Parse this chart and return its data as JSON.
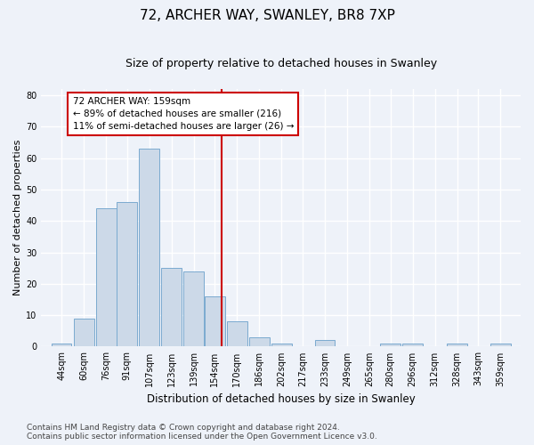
{
  "title": "72, ARCHER WAY, SWANLEY, BR8 7XP",
  "subtitle": "Size of property relative to detached houses in Swanley",
  "xlabel": "Distribution of detached houses by size in Swanley",
  "ylabel": "Number of detached properties",
  "bin_labels": [
    "44sqm",
    "60sqm",
    "76sqm",
    "91sqm",
    "107sqm",
    "123sqm",
    "139sqm",
    "154sqm",
    "170sqm",
    "186sqm",
    "202sqm",
    "217sqm",
    "233sqm",
    "249sqm",
    "265sqm",
    "280sqm",
    "296sqm",
    "312sqm",
    "328sqm",
    "343sqm",
    "359sqm"
  ],
  "bin_centers": [
    44,
    60,
    76,
    91,
    107,
    123,
    139,
    154,
    170,
    186,
    202,
    217,
    233,
    249,
    265,
    280,
    296,
    312,
    328,
    343,
    359
  ],
  "counts": [
    1,
    9,
    44,
    46,
    63,
    25,
    24,
    16,
    8,
    3,
    1,
    0,
    2,
    0,
    0,
    1,
    1,
    0,
    1,
    0,
    1
  ],
  "bar_color": "#ccd9e8",
  "bar_edge_color": "#7aaad0",
  "vline_x": 159,
  "vline_color": "#cc0000",
  "annotation_line1": "72 ARCHER WAY: 159sqm",
  "annotation_line2": "← 89% of detached houses are smaller (216)",
  "annotation_line3": "11% of semi-detached houses are larger (26) →",
  "annotation_box_color": "#ffffff",
  "annotation_box_edge_color": "#cc0000",
  "ylim": [
    0,
    82
  ],
  "yticks": [
    0,
    10,
    20,
    30,
    40,
    50,
    60,
    70,
    80
  ],
  "footer_line1": "Contains HM Land Registry data © Crown copyright and database right 2024.",
  "footer_line2": "Contains public sector information licensed under the Open Government Licence v3.0.",
  "bg_color": "#eef2f9",
  "grid_color": "#ffffff",
  "title_fontsize": 11,
  "subtitle_fontsize": 9,
  "xlabel_fontsize": 8.5,
  "ylabel_fontsize": 8,
  "tick_fontsize": 7,
  "annotation_fontsize": 7.5,
  "footer_fontsize": 6.5
}
